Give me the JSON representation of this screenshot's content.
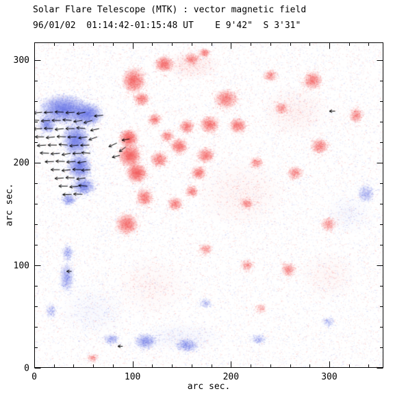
{
  "chart_data": {
    "type": "heatmap",
    "title": "Solar Flare Telescope (MTK) : vector magnetic field",
    "subtitle": "96/01/02  01:14:42-01:15:48 UT    E 9'42\"  S 3'31\"",
    "xlabel": "arc sec.",
    "ylabel": "arc sec.",
    "xlim": [
      0,
      355
    ],
    "ylim": [
      0,
      317
    ],
    "xticks": [
      0,
      100,
      200,
      300
    ],
    "yticks": [
      0,
      100,
      200,
      300
    ],
    "minor_tick_interval": 20,
    "colors": {
      "positive_polarity": "#f55f5f",
      "negative_polarity": "#6976e8",
      "vectors": "#000000",
      "frame": "#000000",
      "background": "#ffffff"
    },
    "noise": {
      "count": 26000,
      "positive_fraction": 0.53,
      "max_alpha": 0.22
    },
    "features": {
      "negative_blobs": [
        [
          30,
          252,
          26,
          15,
          0.85
        ],
        [
          54,
          247,
          16,
          12,
          0.8
        ],
        [
          13,
          237,
          9,
          9,
          0.55
        ],
        [
          42,
          222,
          14,
          17,
          0.8
        ],
        [
          46,
          196,
          13,
          13,
          0.75
        ],
        [
          50,
          177,
          12,
          9,
          0.65
        ],
        [
          35,
          164,
          8,
          6,
          0.4
        ],
        [
          33,
          88,
          8,
          15,
          0.38
        ],
        [
          34,
          112,
          6,
          8,
          0.28
        ],
        [
          17,
          56,
          6,
          8,
          0.18
        ],
        [
          78,
          28,
          8,
          6,
          0.28
        ],
        [
          113,
          26,
          12,
          8,
          0.45
        ],
        [
          155,
          22,
          12,
          7,
          0.4
        ],
        [
          228,
          28,
          8,
          5,
          0.22
        ],
        [
          299,
          45,
          7,
          5,
          0.18
        ],
        [
          174,
          63,
          7,
          5,
          0.18
        ],
        [
          337,
          170,
          9,
          9,
          0.3
        ],
        [
          60,
          55,
          35,
          25,
          0.05
        ],
        [
          150,
          30,
          40,
          15,
          0.06
        ],
        [
          320,
          150,
          25,
          20,
          0.05
        ]
      ],
      "positive_blobs": [
        [
          101,
          280,
          12,
          13,
          0.75
        ],
        [
          132,
          296,
          10,
          8,
          0.65
        ],
        [
          109,
          262,
          8,
          7,
          0.5
        ],
        [
          160,
          301,
          8,
          6,
          0.4
        ],
        [
          173,
          307,
          6,
          5,
          0.35
        ],
        [
          195,
          262,
          13,
          10,
          0.55
        ],
        [
          178,
          237,
          10,
          9,
          0.6
        ],
        [
          207,
          236,
          9,
          8,
          0.55
        ],
        [
          174,
          207,
          9,
          8,
          0.55
        ],
        [
          147,
          216,
          9,
          8,
          0.6
        ],
        [
          127,
          203,
          9,
          8,
          0.55
        ],
        [
          97,
          207,
          12,
          12,
          0.85
        ],
        [
          104,
          190,
          11,
          10,
          0.85
        ],
        [
          96,
          224,
          10,
          9,
          0.8
        ],
        [
          112,
          166,
          9,
          9,
          0.55
        ],
        [
          94,
          140,
          12,
          11,
          0.65
        ],
        [
          143,
          160,
          8,
          7,
          0.45
        ],
        [
          167,
          190,
          8,
          7,
          0.5
        ],
        [
          160,
          172,
          7,
          6,
          0.4
        ],
        [
          155,
          235,
          8,
          7,
          0.5
        ],
        [
          122,
          242,
          7,
          6,
          0.45
        ],
        [
          135,
          226,
          7,
          6,
          0.4
        ],
        [
          283,
          280,
          10,
          9,
          0.55
        ],
        [
          290,
          216,
          9,
          8,
          0.5
        ],
        [
          265,
          190,
          8,
          7,
          0.4
        ],
        [
          251,
          253,
          7,
          6,
          0.35
        ],
        [
          226,
          200,
          7,
          6,
          0.35
        ],
        [
          216,
          160,
          7,
          6,
          0.35
        ],
        [
          258,
          96,
          8,
          7,
          0.38
        ],
        [
          216,
          100,
          7,
          6,
          0.3
        ],
        [
          174,
          116,
          7,
          6,
          0.3
        ],
        [
          299,
          140,
          8,
          7,
          0.35
        ],
        [
          327,
          246,
          7,
          8,
          0.4
        ],
        [
          240,
          285,
          7,
          6,
          0.35
        ],
        [
          59,
          10,
          6,
          4,
          0.25
        ],
        [
          230,
          58,
          6,
          5,
          0.2
        ],
        [
          160,
          295,
          30,
          15,
          0.1
        ],
        [
          210,
          170,
          45,
          35,
          0.06
        ],
        [
          265,
          250,
          35,
          25,
          0.07
        ],
        [
          120,
          80,
          40,
          30,
          0.05
        ],
        [
          300,
          90,
          30,
          25,
          0.05
        ]
      ],
      "vectors": [
        [
          8,
          249,
          186,
          9
        ],
        [
          19,
          249,
          182,
          9
        ],
        [
          30,
          249,
          178,
          9
        ],
        [
          41,
          249,
          184,
          9
        ],
        [
          52,
          249,
          190,
          9
        ],
        [
          5,
          241,
          178,
          9
        ],
        [
          16,
          241,
          184,
          9
        ],
        [
          27,
          241,
          180,
          9
        ],
        [
          38,
          241,
          176,
          9
        ],
        [
          49,
          241,
          188,
          9
        ],
        [
          59,
          241,
          196,
          9
        ],
        [
          8,
          233,
          182,
          9
        ],
        [
          19,
          233,
          178,
          9
        ],
        [
          30,
          233,
          186,
          9
        ],
        [
          41,
          233,
          180,
          9
        ],
        [
          52,
          233,
          174,
          9
        ],
        [
          10,
          225,
          180,
          9
        ],
        [
          21,
          225,
          186,
          9
        ],
        [
          32,
          225,
          178,
          9
        ],
        [
          43,
          225,
          182,
          9
        ],
        [
          54,
          225,
          188,
          9
        ],
        [
          64,
          225,
          200,
          9
        ],
        [
          12,
          217,
          184,
          9
        ],
        [
          23,
          217,
          180,
          9
        ],
        [
          34,
          217,
          176,
          9
        ],
        [
          45,
          217,
          186,
          9
        ],
        [
          56,
          217,
          182,
          9
        ],
        [
          15,
          209,
          178,
          9
        ],
        [
          26,
          209,
          184,
          9
        ],
        [
          37,
          209,
          190,
          9
        ],
        [
          48,
          209,
          182,
          9
        ],
        [
          57,
          209,
          176,
          9
        ],
        [
          20,
          201,
          182,
          9
        ],
        [
          31,
          201,
          178,
          9
        ],
        [
          42,
          201,
          184,
          9
        ],
        [
          53,
          201,
          188,
          9
        ],
        [
          26,
          193,
          180,
          9
        ],
        [
          37,
          193,
          186,
          9
        ],
        [
          48,
          193,
          178,
          9
        ],
        [
          57,
          193,
          184,
          9
        ],
        [
          30,
          185,
          184,
          9
        ],
        [
          41,
          185,
          178,
          9
        ],
        [
          52,
          185,
          188,
          9
        ],
        [
          34,
          177,
          180,
          9
        ],
        [
          45,
          177,
          186,
          9
        ],
        [
          54,
          177,
          176,
          9
        ],
        [
          38,
          169,
          182,
          9
        ],
        [
          49,
          169,
          178,
          9
        ],
        [
          84,
          219,
          205,
          9
        ],
        [
          93,
          215,
          215,
          8
        ],
        [
          87,
          207,
          195,
          8
        ],
        [
          97,
          223,
          190,
          8
        ],
        [
          66,
          233,
          192,
          9
        ],
        [
          70,
          246,
          185,
          9
        ],
        [
          306,
          250,
          180,
          6
        ],
        [
          38,
          94,
          180,
          5
        ],
        [
          90,
          21,
          180,
          5
        ]
      ]
    }
  }
}
